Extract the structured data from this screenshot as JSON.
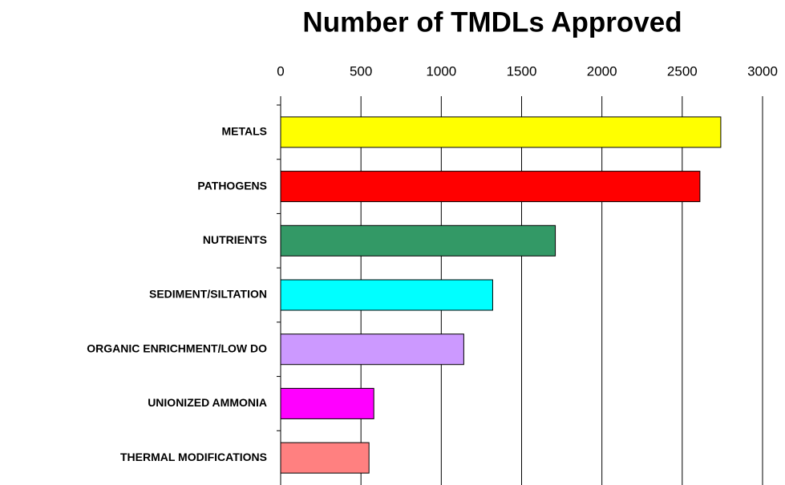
{
  "chart_data": {
    "type": "bar",
    "orientation": "horizontal",
    "title": "Number of TMDLs Approved",
    "categories": [
      "METALS",
      "PATHOGENS",
      "NUTRIENTS",
      "SEDIMENT/SILTATION",
      "ORGANIC ENRICHMENT/LOW DO",
      "UNIONIZED AMMONIA",
      "THERMAL MODIFICATIONS"
    ],
    "values": [
      2740,
      2610,
      1710,
      1320,
      1140,
      580,
      550
    ],
    "colors": [
      "#ffff00",
      "#ff0000",
      "#339966",
      "#00ffff",
      "#cc99ff",
      "#ff00ff",
      "#ff8080"
    ],
    "xlim": [
      0,
      3000
    ],
    "xticks": [
      0,
      500,
      1000,
      1500,
      2000,
      2500,
      3000
    ],
    "grid": true
  }
}
